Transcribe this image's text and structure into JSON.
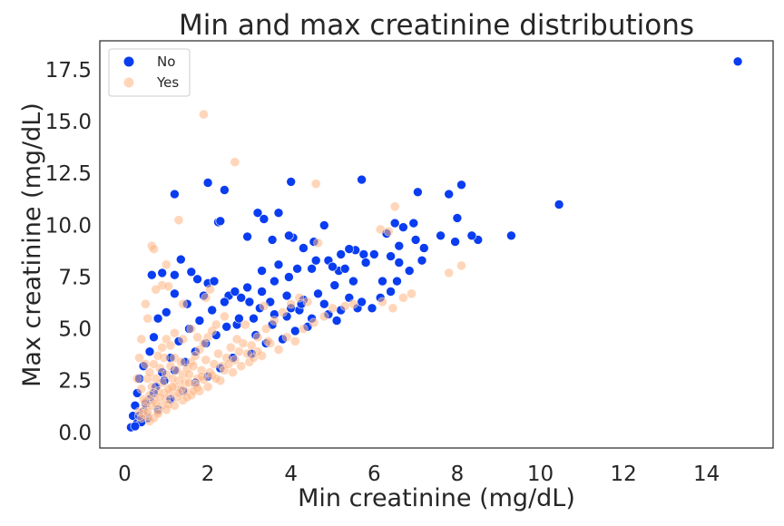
{
  "chart_data": {
    "type": "scatter",
    "title": "Min and max creatinine distributions",
    "xlabel": "Min creatinine (mg/dL)",
    "ylabel": "Max creatinine (mg/dL)",
    "xlim": [
      -0.6,
      15.6
    ],
    "ylim": [
      -0.75,
      18.9
    ],
    "xticks": [
      0,
      2,
      4,
      6,
      8,
      10,
      12,
      14
    ],
    "yticks": [
      0.0,
      2.5,
      5.0,
      7.5,
      10.0,
      12.5,
      15.0,
      17.5
    ],
    "xtick_labels": [
      "0",
      "2",
      "4",
      "6",
      "8",
      "10",
      "12",
      "14"
    ],
    "ytick_labels": [
      "0.0",
      "2.5",
      "5.0",
      "7.5",
      "10.0",
      "12.5",
      "15.0",
      "17.5"
    ],
    "grid": false,
    "legend": {
      "placement": "top-left"
    },
    "series": [
      {
        "name": "No",
        "color": "#0a3df0",
        "opacity": 1.0,
        "points": [
          [
            14.75,
            17.9
          ],
          [
            10.45,
            11.0
          ],
          [
            9.3,
            9.5
          ],
          [
            8.5,
            9.3
          ],
          [
            8.35,
            9.5
          ],
          [
            8.1,
            11.95
          ],
          [
            7.8,
            11.5
          ],
          [
            8.0,
            10.35
          ],
          [
            7.6,
            9.5
          ],
          [
            7.95,
            9.2
          ],
          [
            7.05,
            11.6
          ],
          [
            7.0,
            9.3
          ],
          [
            7.2,
            8.9
          ],
          [
            7.15,
            8.3
          ],
          [
            6.95,
            10.1
          ],
          [
            6.7,
            9.9
          ],
          [
            6.5,
            10.1
          ],
          [
            6.3,
            9.6
          ],
          [
            6.6,
            9.0
          ],
          [
            6.4,
            8.5
          ],
          [
            6.0,
            8.6
          ],
          [
            5.7,
            12.2
          ],
          [
            5.75,
            8.6
          ],
          [
            5.55,
            8.8
          ],
          [
            5.4,
            8.85
          ],
          [
            5.8,
            8.2
          ],
          [
            5.2,
            8.6
          ],
          [
            5.15,
            7.8
          ],
          [
            4.9,
            8.3
          ],
          [
            4.6,
            8.3
          ],
          [
            4.5,
            7.9
          ],
          [
            4.3,
            8.9
          ],
          [
            4.05,
            9.4
          ],
          [
            4.0,
            12.1
          ],
          [
            3.55,
            9.3
          ],
          [
            3.95,
            9.5
          ],
          [
            3.2,
            10.6
          ],
          [
            3.35,
            10.3
          ],
          [
            3.7,
            10.6
          ],
          [
            2.95,
            9.45
          ],
          [
            3.3,
            7.8
          ],
          [
            3.7,
            8.1
          ],
          [
            3.95,
            7.5
          ],
          [
            4.15,
            7.9
          ],
          [
            2.25,
            10.15
          ],
          [
            2.3,
            10.2
          ],
          [
            2.4,
            11.7
          ],
          [
            2.0,
            12.05
          ],
          [
            1.2,
            11.5
          ],
          [
            1.35,
            8.35
          ],
          [
            1.6,
            7.75
          ],
          [
            0.65,
            7.6
          ],
          [
            0.9,
            7.7
          ],
          [
            1.2,
            7.6
          ],
          [
            1.75,
            7.4
          ],
          [
            2.0,
            7.2
          ],
          [
            2.15,
            7.3
          ],
          [
            2.5,
            6.6
          ],
          [
            2.8,
            6.5
          ],
          [
            3.0,
            6.3
          ],
          [
            3.25,
            6.0
          ],
          [
            3.5,
            6.3
          ],
          [
            4.55,
            9.2
          ],
          [
            4.8,
            10.0
          ],
          [
            5.0,
            8.0
          ],
          [
            5.3,
            7.9
          ],
          [
            6.15,
            6.5
          ],
          [
            6.4,
            6.8
          ],
          [
            6.85,
            7.8
          ],
          [
            6.55,
            7.3
          ],
          [
            5.95,
            6.0
          ],
          [
            5.6,
            6.0
          ],
          [
            5.2,
            5.9
          ],
          [
            4.9,
            5.7
          ],
          [
            4.3,
            6.4
          ],
          [
            4.0,
            6.0
          ],
          [
            3.6,
            5.7
          ],
          [
            3.1,
            5.5
          ],
          [
            2.7,
            5.2
          ],
          [
            1.9,
            6.6
          ],
          [
            1.5,
            6.2
          ],
          [
            1.2,
            6.7
          ],
          [
            1.0,
            5.8
          ],
          [
            0.8,
            5.5
          ],
          [
            0.7,
            4.6
          ],
          [
            0.6,
            3.9
          ],
          [
            0.45,
            3.2
          ],
          [
            0.35,
            2.6
          ],
          [
            0.3,
            1.9
          ],
          [
            0.25,
            1.3
          ],
          [
            0.2,
            0.8
          ],
          [
            0.15,
            0.25
          ],
          [
            0.3,
            0.45
          ],
          [
            0.45,
            1.0
          ],
          [
            0.6,
            1.6
          ],
          [
            0.75,
            2.2
          ],
          [
            0.9,
            2.9
          ],
          [
            1.1,
            3.6
          ],
          [
            1.3,
            4.4
          ],
          [
            1.55,
            5.0
          ],
          [
            1.8,
            5.4
          ],
          [
            2.1,
            5.9
          ],
          [
            2.4,
            6.3
          ],
          [
            2.65,
            6.8
          ],
          [
            2.95,
            7.0
          ],
          [
            3.3,
            6.8
          ],
          [
            3.6,
            7.3
          ],
          [
            3.9,
            6.6
          ],
          [
            4.2,
            5.9
          ],
          [
            4.5,
            5.5
          ],
          [
            4.8,
            6.2
          ],
          [
            5.1,
            5.4
          ],
          [
            5.4,
            6.5
          ],
          [
            5.7,
            6.3
          ],
          [
            3.05,
            3.8
          ],
          [
            3.4,
            4.3
          ],
          [
            3.8,
            4.5
          ],
          [
            4.1,
            4.9
          ],
          [
            4.4,
            5.1
          ],
          [
            2.6,
            3.6
          ],
          [
            2.3,
            3.1
          ],
          [
            2.0,
            2.7
          ],
          [
            1.7,
            2.4
          ],
          [
            1.4,
            2.0
          ],
          [
            1.1,
            1.6
          ],
          [
            0.8,
            1.1
          ],
          [
            0.55,
            0.7
          ],
          [
            0.4,
            0.5
          ],
          [
            0.25,
            0.3
          ],
          [
            0.35,
            0.8
          ],
          [
            0.5,
            1.4
          ],
          [
            0.7,
            1.9
          ],
          [
            0.95,
            2.5
          ],
          [
            1.2,
            3.0
          ],
          [
            1.45,
            3.4
          ],
          [
            1.7,
            3.9
          ],
          [
            1.95,
            4.3
          ],
          [
            2.2,
            4.7
          ],
          [
            2.45,
            5.1
          ],
          [
            2.75,
            5.5
          ],
          [
            3.15,
            4.7
          ],
          [
            3.55,
            5.2
          ],
          [
            3.9,
            5.6
          ],
          [
            4.25,
            6.2
          ],
          [
            4.65,
            6.7
          ],
          [
            5.05,
            7.1
          ],
          [
            5.5,
            7.3
          ],
          [
            6.2,
            7.3
          ],
          [
            6.6,
            8.2
          ]
        ]
      },
      {
        "name": "Yes",
        "color": "#ffb482",
        "opacity": 0.55,
        "points": [
          [
            1.9,
            15.35
          ],
          [
            2.65,
            13.05
          ],
          [
            4.6,
            12.0
          ],
          [
            1.3,
            10.25
          ],
          [
            6.5,
            10.9
          ],
          [
            6.15,
            9.8
          ],
          [
            6.35,
            9.7
          ],
          [
            0.65,
            9.0
          ],
          [
            0.7,
            8.85
          ],
          [
            1.0,
            8.1
          ],
          [
            0.9,
            7.1
          ],
          [
            8.1,
            8.05
          ],
          [
            7.8,
            7.7
          ],
          [
            4.65,
            9.15
          ],
          [
            0.5,
            6.2
          ],
          [
            0.75,
            6.9
          ],
          [
            1.05,
            7.05
          ],
          [
            1.4,
            6.2
          ],
          [
            1.95,
            6.5
          ],
          [
            2.05,
            6.9
          ],
          [
            6.9,
            6.7
          ],
          [
            6.7,
            6.5
          ],
          [
            6.2,
            6.3
          ],
          [
            6.45,
            6.0
          ],
          [
            5.5,
            6.2
          ],
          [
            3.35,
            6.1
          ],
          [
            0.55,
            5.5
          ],
          [
            0.4,
            4.5
          ],
          [
            0.35,
            3.6
          ],
          [
            0.5,
            3.3
          ],
          [
            0.3,
            2.6
          ],
          [
            0.4,
            2.1
          ],
          [
            0.45,
            1.6
          ],
          [
            0.5,
            1.2
          ],
          [
            0.55,
            0.8
          ],
          [
            0.6,
            0.55
          ],
          [
            0.7,
            0.7
          ],
          [
            0.8,
            1.0
          ],
          [
            0.9,
            1.3
          ],
          [
            1.0,
            1.6
          ],
          [
            1.1,
            1.9
          ],
          [
            1.2,
            2.2
          ],
          [
            1.3,
            2.5
          ],
          [
            1.4,
            2.8
          ],
          [
            1.5,
            3.1
          ],
          [
            1.6,
            3.4
          ],
          [
            1.7,
            3.7
          ],
          [
            1.8,
            4.0
          ],
          [
            1.9,
            4.3
          ],
          [
            2.0,
            4.6
          ],
          [
            2.1,
            4.9
          ],
          [
            2.2,
            5.2
          ],
          [
            0.7,
            1.6
          ],
          [
            0.8,
            2.0
          ],
          [
            0.9,
            2.4
          ],
          [
            1.0,
            2.8
          ],
          [
            1.1,
            3.2
          ],
          [
            1.2,
            3.6
          ],
          [
            0.85,
            3.1
          ],
          [
            0.95,
            3.6
          ],
          [
            0.75,
            2.6
          ],
          [
            0.65,
            2.2
          ],
          [
            0.6,
            1.8
          ],
          [
            1.15,
            2.6
          ],
          [
            1.25,
            3.0
          ],
          [
            1.35,
            3.4
          ],
          [
            1.45,
            2.4
          ],
          [
            1.55,
            2.8
          ],
          [
            1.65,
            3.2
          ],
          [
            1.75,
            2.6
          ],
          [
            1.85,
            3.0
          ],
          [
            1.95,
            3.5
          ],
          [
            2.05,
            2.9
          ],
          [
            2.15,
            3.3
          ],
          [
            2.25,
            3.8
          ],
          [
            2.35,
            3.2
          ],
          [
            2.45,
            3.6
          ],
          [
            2.55,
            4.1
          ],
          [
            2.65,
            3.5
          ],
          [
            2.75,
            3.9
          ],
          [
            2.85,
            4.3
          ],
          [
            2.95,
            3.8
          ],
          [
            3.05,
            4.2
          ],
          [
            3.2,
            4.6
          ],
          [
            3.4,
            5.0
          ],
          [
            3.6,
            5.4
          ],
          [
            3.8,
            5.8
          ],
          [
            4.0,
            6.2
          ],
          [
            4.2,
            6.5
          ],
          [
            4.4,
            6.3
          ],
          [
            3.0,
            3.4
          ],
          [
            3.3,
            3.7
          ],
          [
            2.6,
            2.9
          ],
          [
            2.3,
            2.5
          ],
          [
            2.0,
            2.2
          ],
          [
            1.8,
            2.0
          ],
          [
            1.6,
            1.8
          ],
          [
            1.4,
            1.55
          ],
          [
            1.2,
            1.3
          ],
          [
            1.0,
            1.1
          ],
          [
            0.8,
            0.9
          ],
          [
            1.05,
            1.35
          ],
          [
            1.25,
            1.7
          ],
          [
            1.45,
            2.0
          ],
          [
            1.7,
            2.3
          ],
          [
            1.9,
            2.55
          ],
          [
            2.1,
            2.75
          ],
          [
            2.4,
            3.0
          ],
          [
            0.95,
            1.9
          ],
          [
            1.15,
            2.2
          ],
          [
            1.35,
            2.1
          ],
          [
            1.55,
            2.4
          ],
          [
            1.75,
            2.15
          ],
          [
            0.55,
            1.0
          ],
          [
            0.65,
            1.3
          ],
          [
            0.75,
            1.4
          ],
          [
            0.85,
            1.7
          ],
          [
            1.05,
            2.1
          ],
          [
            1.3,
            1.9
          ],
          [
            1.5,
            1.7
          ],
          [
            1.65,
            2.0
          ],
          [
            1.85,
            2.7
          ],
          [
            2.2,
            2.6
          ],
          [
            2.5,
            3.3
          ],
          [
            2.8,
            3.2
          ],
          [
            3.1,
            3.6
          ],
          [
            3.5,
            4.3
          ],
          [
            3.7,
            4.0
          ],
          [
            3.9,
            4.6
          ],
          [
            4.1,
            4.4
          ],
          [
            4.3,
            5.0
          ],
          [
            4.55,
            5.3
          ],
          [
            4.8,
            5.6
          ],
          [
            5.0,
            6.0
          ],
          [
            5.3,
            6.1
          ],
          [
            0.45,
            0.9
          ],
          [
            0.5,
            1.5
          ],
          [
            0.35,
            1.0
          ],
          [
            0.4,
            0.7
          ],
          [
            0.55,
            2.6
          ],
          [
            0.6,
            2.9
          ],
          [
            0.7,
            3.3
          ],
          [
            0.8,
            3.7
          ],
          [
            0.9,
            4.1
          ],
          [
            1.0,
            4.5
          ],
          [
            1.1,
            4.2
          ],
          [
            1.2,
            4.8
          ],
          [
            1.4,
            4.5
          ],
          [
            1.6,
            5.0
          ],
          [
            1.75,
            4.6
          ],
          [
            2.4,
            5.6
          ],
          [
            2.7,
            4.5
          ],
          [
            2.9,
            5.2
          ],
          [
            3.2,
            3.9
          ],
          [
            3.45,
            4.4
          ]
        ]
      }
    ]
  }
}
